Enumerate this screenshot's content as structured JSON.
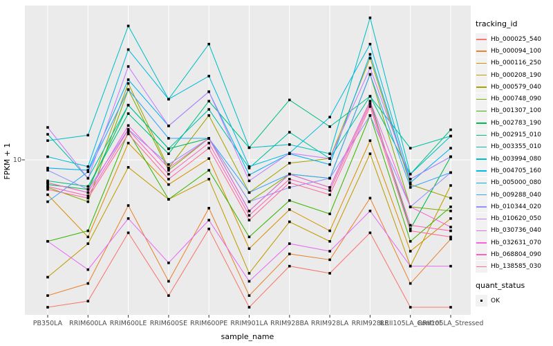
{
  "chart_data": {
    "type": "line",
    "title": "",
    "xlabel": "sample_name",
    "ylabel": "FPKM + 1",
    "y_scale": "log10",
    "y_tick_label": "10",
    "grid": true,
    "legend_position": "right",
    "categories": [
      "PB350LA",
      "RRIM600LA",
      "RRIM600LE",
      "RRIM600SE",
      "RRIM600PE",
      "RRIM901LA",
      "RRIM928BA",
      "RRIM928LA",
      "RRIM928LE",
      "RRII105LA_Control",
      "RRII105LA_Stressed"
    ],
    "legend": {
      "tracking_title": "tracking_id",
      "quant_title": "quant_status",
      "quant_value": "OK"
    },
    "style": {
      "panel_bg": "#EBEBEB",
      "grid_color": "#FFFFFF",
      "marker_color": "#000000",
      "tick_label_color": "#4D4D4D",
      "axis_title_color": "#000000",
      "legend_key_bg": "#F2F2F2"
    },
    "series": [
      {
        "name": "Hb_000025_540",
        "color": "#F8766D",
        "values": [
          1.0,
          1.1,
          3.2,
          1.2,
          3.4,
          1.0,
          1.9,
          1.7,
          3.2,
          1.0,
          1.0
        ]
      },
      {
        "name": "Hb_000094_100",
        "color": "#EA8331",
        "values": [
          1.2,
          1.45,
          4.9,
          1.5,
          4.7,
          1.2,
          2.3,
          2.1,
          5.5,
          1.45,
          2.9
        ]
      },
      {
        "name": "Hb_000116_250",
        "color": "#D89000",
        "values": [
          5.8,
          3.0,
          13.0,
          6.8,
          10.2,
          2.5,
          4.6,
          3.3,
          13.5,
          2.4,
          4.0
        ]
      },
      {
        "name": "Hb_000208_190",
        "color": "#C09B00",
        "values": [
          1.6,
          2.7,
          8.9,
          5.4,
          7.4,
          1.7,
          3.8,
          2.8,
          11.0,
          1.9,
          6.7
        ]
      },
      {
        "name": "Hb_000579_040",
        "color": "#A3A500",
        "values": [
          7.0,
          6.0,
          33.0,
          8.8,
          20.0,
          6.0,
          9.5,
          10.2,
          49.0,
          6.8,
          5.5
        ]
      },
      {
        "name": "Hb_000748_090",
        "color": "#7CAE00",
        "values": [
          6.5,
          5.2,
          30.0,
          8.5,
          14.0,
          5.2,
          8.0,
          7.5,
          38.0,
          4.8,
          4.5
        ]
      },
      {
        "name": "Hb_001307_100",
        "color": "#39B600",
        "values": [
          2.8,
          3.3,
          15.5,
          5.4,
          8.5,
          3.0,
          5.3,
          4.3,
          20.0,
          2.8,
          4.8
        ]
      },
      {
        "name": "Hb_002783_190",
        "color": "#00BB4E",
        "values": [
          6.8,
          6.3,
          23.5,
          11.9,
          14.0,
          4.5,
          8.0,
          6.5,
          25.0,
          3.4,
          10.5
        ]
      },
      {
        "name": "Hb_002915_010",
        "color": "#00BF7D",
        "values": [
          7.2,
          6.6,
          20.6,
          11.0,
          25.0,
          12.1,
          25.5,
          16.8,
          27.0,
          8.0,
          16.0
        ]
      },
      {
        "name": "Hb_003355_010",
        "color": "#00C1A3",
        "values": [
          14.9,
          7.5,
          23.5,
          11.9,
          22.0,
          8.8,
          15.4,
          10.2,
          27.0,
          12.0,
          14.5
        ]
      },
      {
        "name": "Hb_003994_080",
        "color": "#00BFC4",
        "values": [
          13.5,
          14.7,
          81.0,
          25.8,
          61.0,
          12.1,
          12.7,
          11.0,
          92.0,
          8.0,
          14.5
        ]
      },
      {
        "name": "Hb_004705_160",
        "color": "#00BAE0",
        "values": [
          10.5,
          9.0,
          56.0,
          25.8,
          37.0,
          9.0,
          11.1,
          19.5,
          61.0,
          7.4,
          10.5
        ]
      },
      {
        "name": "Hb_005000_080",
        "color": "#00B0F6",
        "values": [
          8.8,
          8.5,
          35.0,
          17.0,
          29.0,
          7.9,
          11.0,
          9.3,
          52.0,
          7.0,
          12.0
        ]
      },
      {
        "name": "Hb_009288_040",
        "color": "#35A2FF",
        "values": [
          5.2,
          8.3,
          30.0,
          14.0,
          14.0,
          6.0,
          8.0,
          7.5,
          38.0,
          6.5,
          8.2
        ]
      },
      {
        "name": "Hb_010344_020",
        "color": "#9590FF",
        "values": [
          8.5,
          6.3,
          16.1,
          9.3,
          14.0,
          5.2,
          6.5,
          7.5,
          20.0,
          4.8,
          8.2
        ]
      },
      {
        "name": "Hb_010620_050",
        "color": "#C77CFF",
        "values": [
          16.6,
          7.5,
          43.0,
          17.0,
          29.0,
          7.2,
          11.1,
          10.2,
          42.0,
          7.4,
          10.5
        ]
      },
      {
        "name": "Hb_030736_040",
        "color": "#E76BF3",
        "values": [
          2.8,
          1.8,
          4.0,
          2.0,
          3.9,
          1.5,
          2.7,
          2.4,
          4.5,
          1.9,
          1.9
        ]
      },
      {
        "name": "Hb_032631_070",
        "color": "#FA62DB",
        "values": [
          7.0,
          6.0,
          17.1,
          8.8,
          14.0,
          4.5,
          8.0,
          6.5,
          25.0,
          4.8,
          3.5
        ]
      },
      {
        "name": "Hb_068804_090",
        "color": "#FF62BC",
        "values": [
          6.6,
          5.7,
          16.0,
          8.0,
          13.0,
          4.2,
          7.4,
          6.2,
          24.0,
          3.6,
          3.3
        ]
      },
      {
        "name": "Hb_138585_030",
        "color": "#FF6A98",
        "values": [
          6.3,
          5.5,
          15.0,
          7.4,
          12.0,
          3.9,
          7.0,
          5.8,
          23.0,
          3.3,
          3.0
        ]
      }
    ]
  }
}
